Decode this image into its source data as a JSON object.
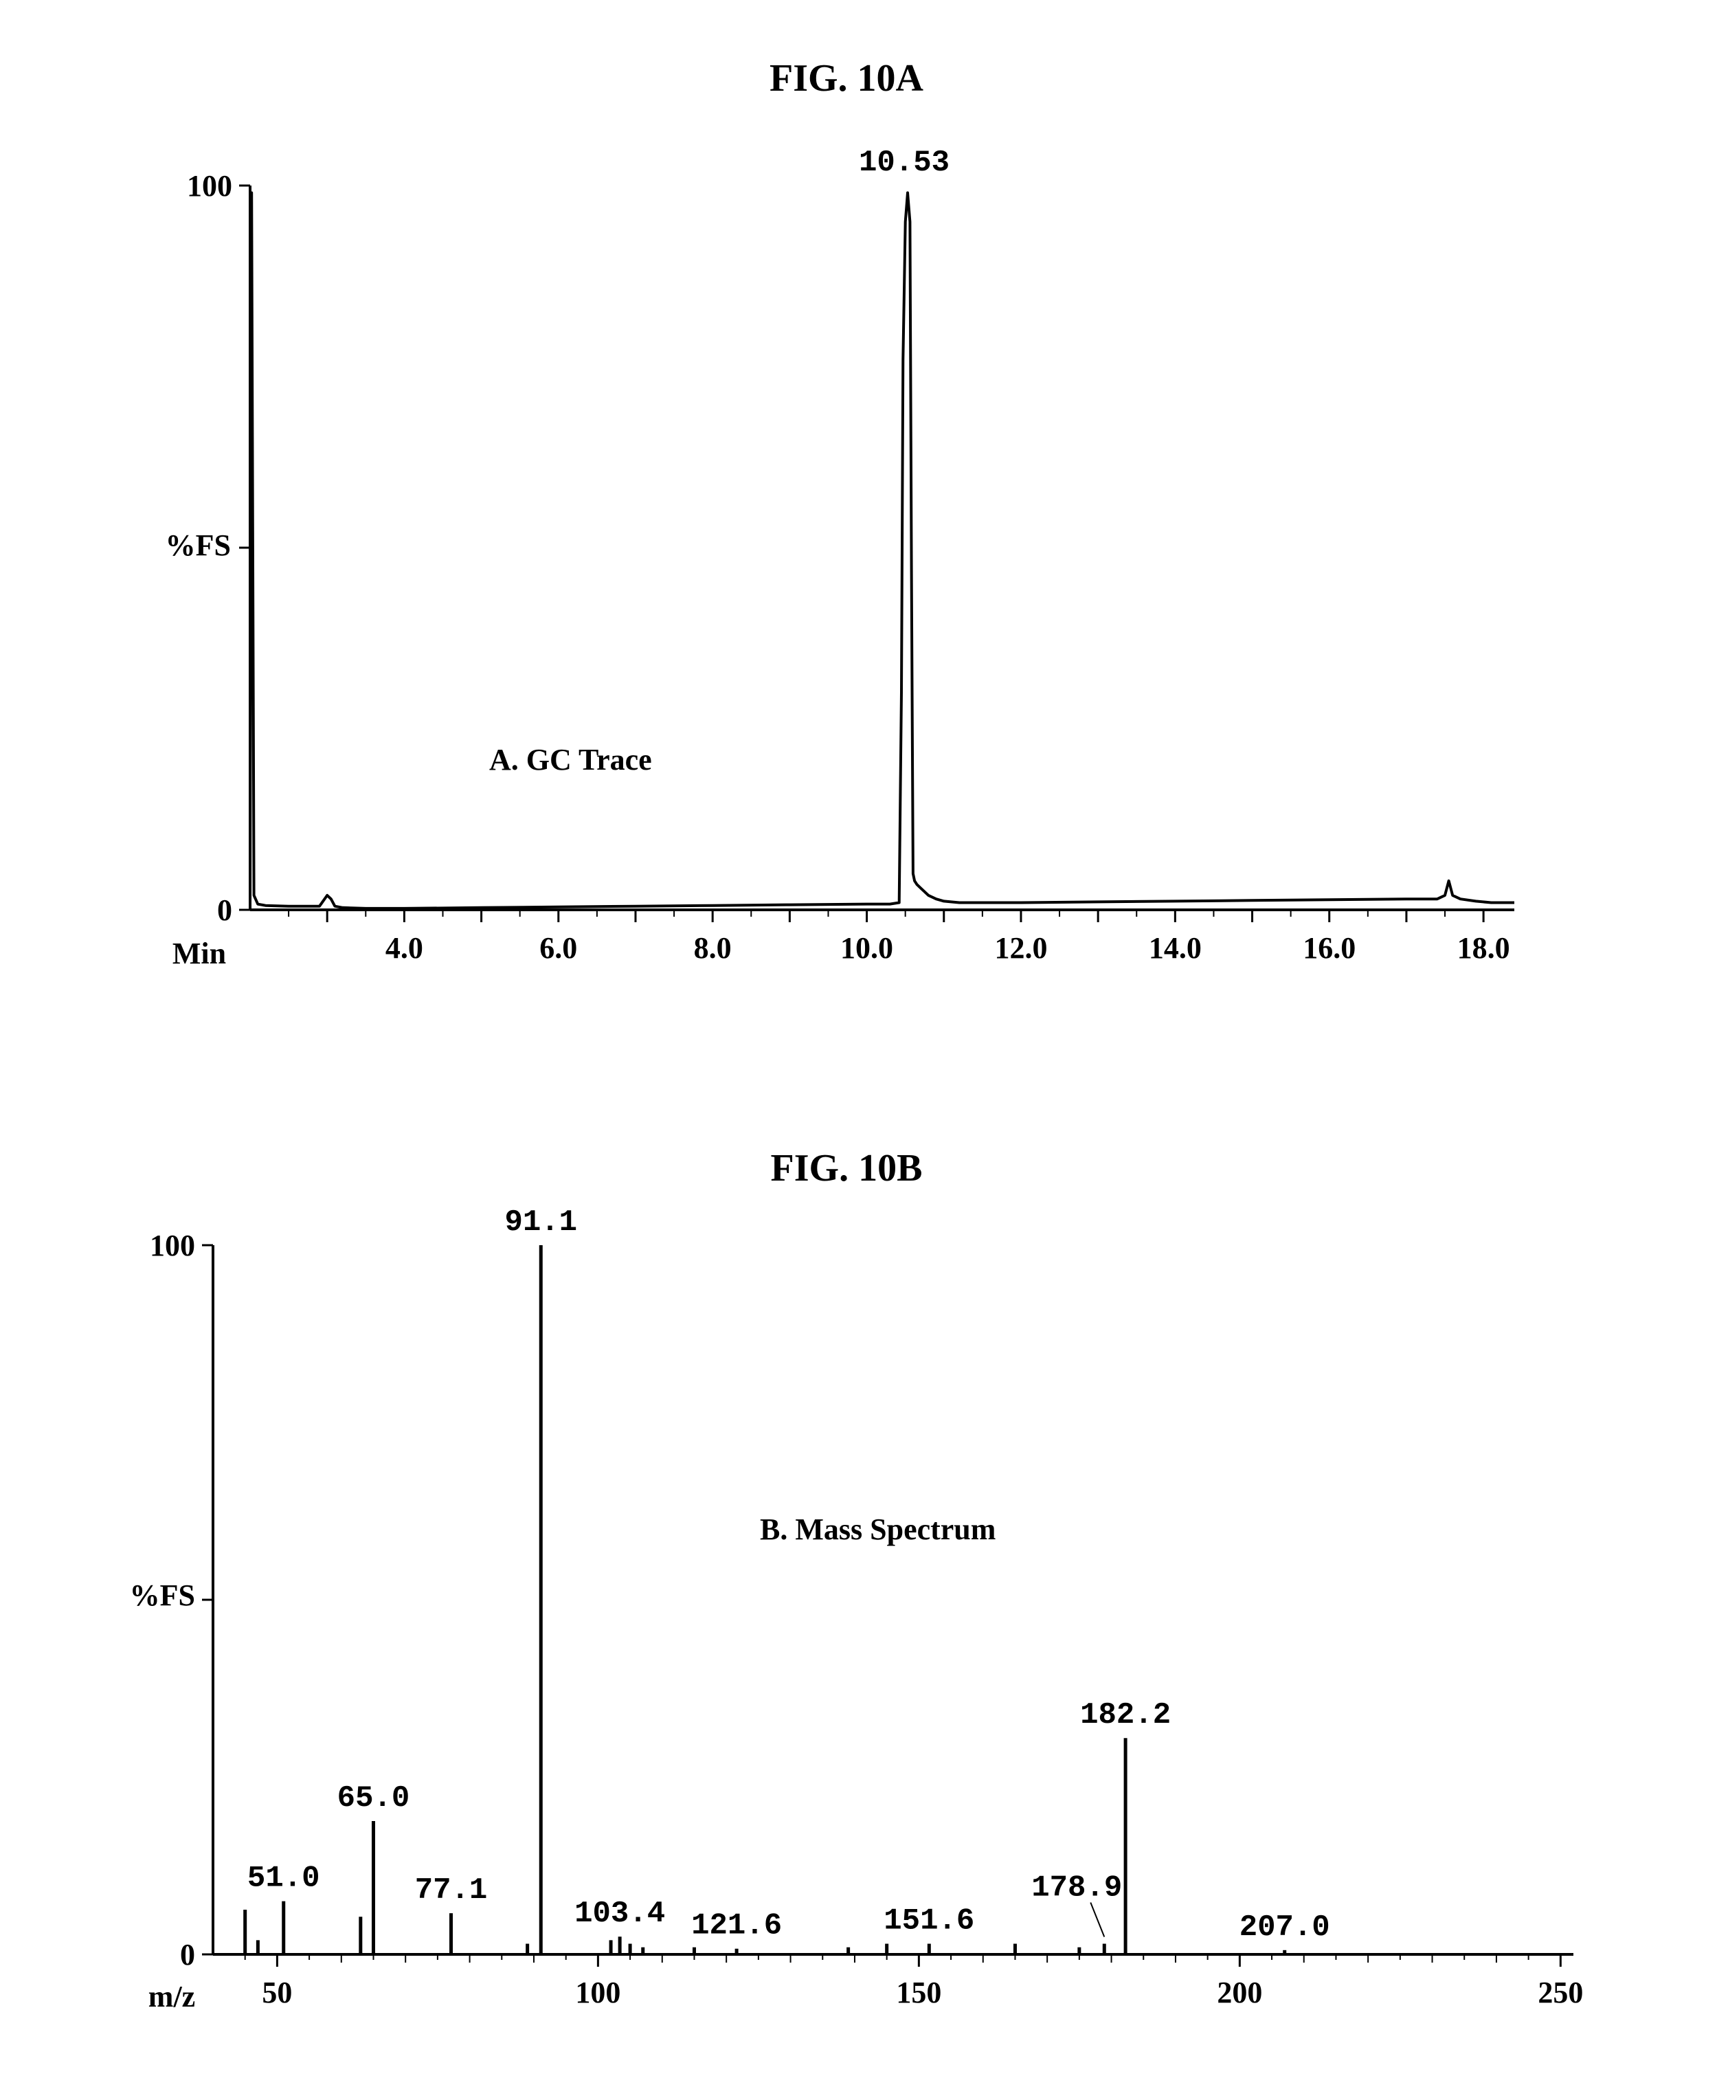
{
  "chart_data": [
    {
      "type": "line",
      "figure_label": "FIG. 10A",
      "title": "",
      "annotation": "A. GC Trace",
      "xlabel": "Min",
      "ylabel": "%FS",
      "xlim": [
        2.0,
        18.4
      ],
      "ylim": [
        0,
        100
      ],
      "x_ticks": [
        {
          "value": 4.0,
          "label": "4.0"
        },
        {
          "value": 6.0,
          "label": "6.0"
        },
        {
          "value": 8.0,
          "label": "8.0"
        },
        {
          "value": 10.0,
          "label": "10.0"
        },
        {
          "value": 12.0,
          "label": "12.0"
        },
        {
          "value": 14.0,
          "label": "14.0"
        },
        {
          "value": 16.0,
          "label": "16.0"
        },
        {
          "value": 18.0,
          "label": "18.0"
        }
      ],
      "y_ticks": [
        {
          "value": 100,
          "label": "100"
        },
        {
          "value": 0,
          "label": "0"
        }
      ],
      "peak_labels": [
        {
          "x": 10.53,
          "y": 100,
          "label": "10.53"
        }
      ],
      "series": [
        {
          "x": [
            2.0,
            2.02,
            2.05,
            2.1,
            2.2,
            2.5,
            2.9,
            3.0,
            3.05,
            3.1,
            3.2,
            3.5,
            4.0,
            5.0,
            6.0,
            7.0,
            8.0,
            9.0,
            10.0,
            10.3,
            10.42,
            10.45,
            10.47,
            10.5,
            10.53,
            10.56,
            10.58,
            10.6,
            10.62,
            10.65,
            10.7,
            10.8,
            10.9,
            11.0,
            11.2,
            11.5,
            12.0,
            13.0,
            14.0,
            15.0,
            16.0,
            17.0,
            17.4,
            17.5,
            17.55,
            17.6,
            17.7,
            17.9,
            18.1,
            18.4
          ],
          "y": [
            0.5,
            99,
            2,
            0.8,
            0.6,
            0.5,
            0.5,
            2,
            1.5,
            0.5,
            0.3,
            0.2,
            0.2,
            0.3,
            0.4,
            0.5,
            0.6,
            0.7,
            0.8,
            0.8,
            1,
            30,
            76,
            95,
            99,
            95,
            47,
            5,
            4,
            3.5,
            3,
            2,
            1.5,
            1.2,
            1,
            1,
            1,
            1.1,
            1.2,
            1.3,
            1.4,
            1.5,
            1.5,
            2,
            4,
            2,
            1.5,
            1.2,
            1.0,
            1.0
          ]
        }
      ]
    },
    {
      "type": "bar",
      "figure_label": "FIG. 10B",
      "title": "",
      "annotation": "B. Mass Spectrum",
      "xlabel": "m/z",
      "ylabel": "%FS",
      "xlim": [
        40,
        252
      ],
      "ylim": [
        0,
        100
      ],
      "x_ticks": [
        {
          "value": 50,
          "label": "50"
        },
        {
          "value": 100,
          "label": "100"
        },
        {
          "value": 150,
          "label": "150"
        },
        {
          "value": 200,
          "label": "200"
        },
        {
          "value": 250,
          "label": "250"
        }
      ],
      "y_ticks": [
        {
          "value": 100,
          "label": "100"
        },
        {
          "value": 0,
          "label": "0"
        }
      ],
      "peak_labels": [
        {
          "x": 51.0,
          "label": "51.0"
        },
        {
          "x": 65.0,
          "label": "65.0"
        },
        {
          "x": 77.1,
          "label": "77.1"
        },
        {
          "x": 91.1,
          "label": "91.1"
        },
        {
          "x": 103.4,
          "label": "103.4"
        },
        {
          "x": 121.6,
          "label": "121.6"
        },
        {
          "x": 151.6,
          "label": "151.6"
        },
        {
          "x": 178.9,
          "label": "178.9"
        },
        {
          "x": 182.2,
          "label": "182.2"
        },
        {
          "x": 207.0,
          "label": "207.0"
        }
      ],
      "x": [
        45,
        47,
        51,
        63,
        65,
        77.1,
        89,
        91.1,
        102,
        103.4,
        105,
        107,
        115,
        121.6,
        139,
        145,
        151.6,
        165,
        175,
        178.9,
        182.2,
        207
      ],
      "values": [
        6.3,
        2,
        7.5,
        5.3,
        18.8,
        5.8,
        1.5,
        100,
        2,
        2.5,
        1.5,
        1,
        1,
        0.8,
        1,
        1.5,
        1.5,
        1.5,
        1,
        1.5,
        30.5,
        0.6
      ]
    }
  ]
}
